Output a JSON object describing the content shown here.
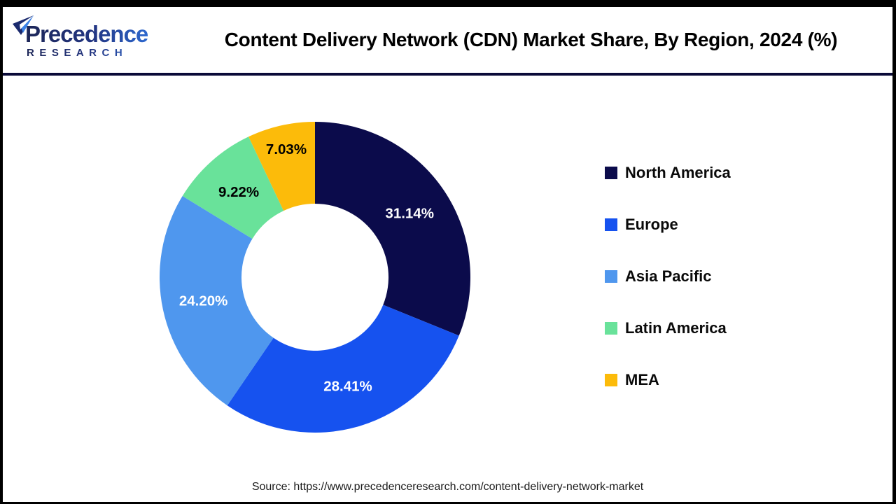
{
  "header": {
    "logo": {
      "line1": "Precedence",
      "line2": "RESEARCH"
    },
    "title": "Content Delivery Network (CDN) Market Share, By Region, 2024 (%)"
  },
  "chart_data": {
    "type": "pie",
    "subtype": "donut",
    "title": "Content Delivery Network (CDN) Market Share, By Region, 2024 (%)",
    "unit": "%",
    "total": 100,
    "start_angle_deg": 0,
    "direction": "clockwise",
    "donut_hole_ratio": 0.47,
    "legend_position": "right",
    "slices": [
      {
        "name": "North America",
        "value": 31.14,
        "label": "31.14%",
        "color": "#0B0B4B",
        "label_color": "#FFFFFF"
      },
      {
        "name": "Europe",
        "value": 28.41,
        "label": "28.41%",
        "color": "#1652EF",
        "label_color": "#FFFFFF"
      },
      {
        "name": "Asia Pacific",
        "value": 24.2,
        "label": "24.20%",
        "color": "#4F97EE",
        "label_color": "#FFFFFF"
      },
      {
        "name": "Latin America",
        "value": 9.22,
        "label": "9.22%",
        "color": "#69E29A",
        "label_color": "#000000"
      },
      {
        "name": "MEA",
        "value": 7.03,
        "label": "7.03%",
        "color": "#FCBB0A",
        "label_color": "#000000"
      }
    ]
  },
  "footer": {
    "source_text": "Source: https://www.precedenceresearch.com/content-delivery-network-market"
  }
}
